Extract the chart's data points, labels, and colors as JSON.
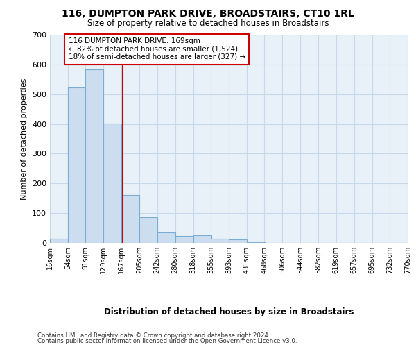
{
  "title1": "116, DUMPTON PARK DRIVE, BROADSTAIRS, CT10 1RL",
  "title2": "Size of property relative to detached houses in Broadstairs",
  "xlabel": "Distribution of detached houses by size in Broadstairs",
  "ylabel": "Number of detached properties",
  "bar_left_edges": [
    16,
    54,
    91,
    129,
    167,
    205,
    242,
    280,
    318,
    355,
    393,
    431,
    468,
    506,
    544,
    582,
    619,
    657,
    695,
    732
  ],
  "bar_heights": [
    13,
    523,
    583,
    402,
    162,
    87,
    35,
    24,
    25,
    14,
    12,
    2,
    0,
    0,
    0,
    0,
    0,
    0,
    0,
    1
  ],
  "bin_width": 38,
  "bar_color": "#ccddf0",
  "bar_edge_color": "#7aadd4",
  "grid_color": "#c8d8eb",
  "bg_color": "#e8f0f8",
  "vline_x": 169,
  "vline_color": "#cc0000",
  "annotation_text": "116 DUMPTON PARK DRIVE: 169sqm\n← 82% of detached houses are smaller (1,524)\n18% of semi-detached houses are larger (327) →",
  "annotation_box_color": "#cc0000",
  "ylim": [
    0,
    700
  ],
  "yticks": [
    0,
    100,
    200,
    300,
    400,
    500,
    600,
    700
  ],
  "xtick_labels": [
    "16sqm",
    "54sqm",
    "91sqm",
    "129sqm",
    "167sqm",
    "205sqm",
    "242sqm",
    "280sqm",
    "318sqm",
    "355sqm",
    "393sqm",
    "431sqm",
    "468sqm",
    "506sqm",
    "544sqm",
    "582sqm",
    "619sqm",
    "657sqm",
    "695sqm",
    "732sqm",
    "770sqm"
  ],
  "footnote1": "Contains HM Land Registry data © Crown copyright and database right 2024.",
  "footnote2": "Contains public sector information licensed under the Open Government Licence v3.0."
}
